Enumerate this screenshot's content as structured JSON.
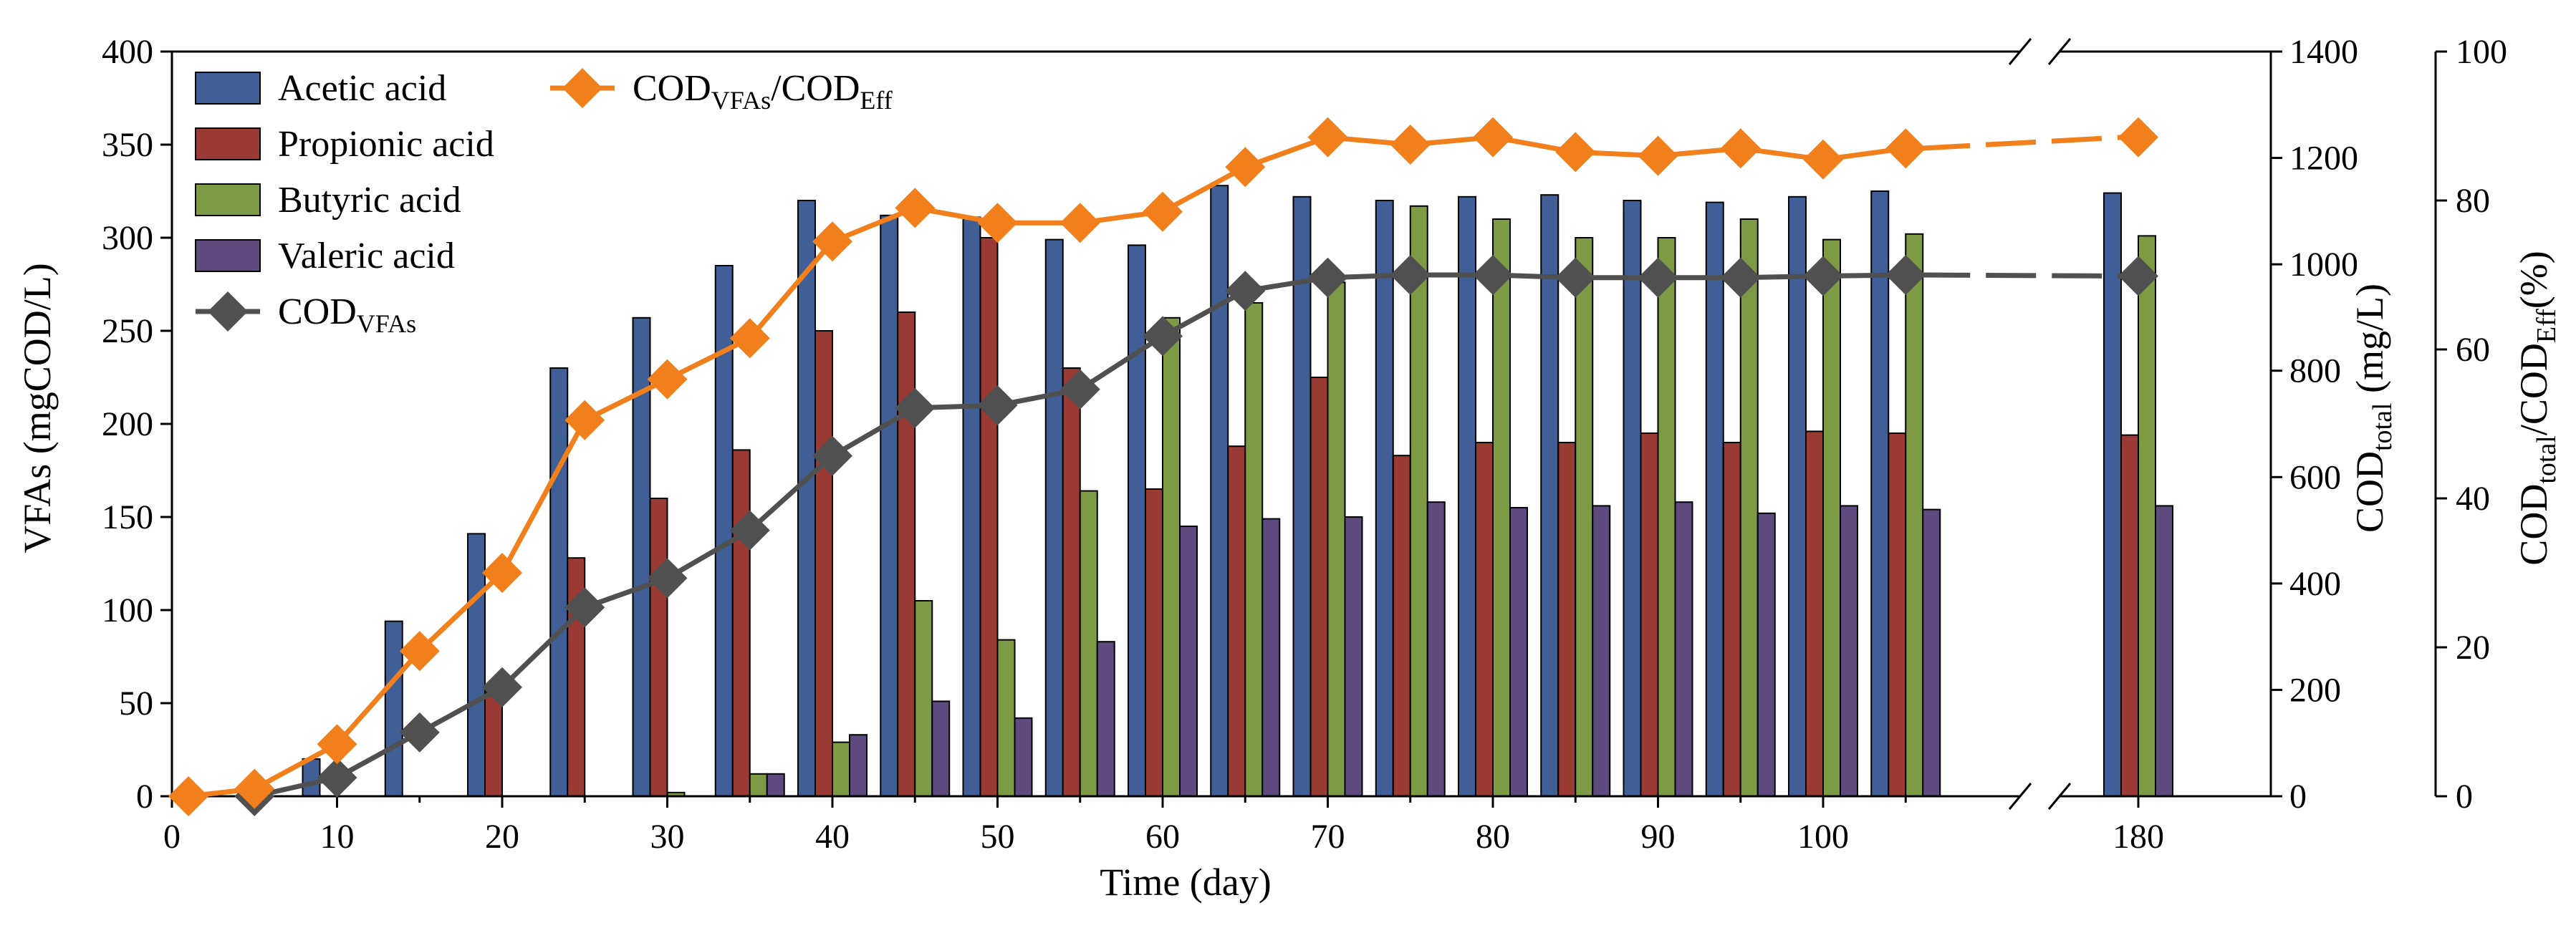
{
  "chart_data": {
    "type": "bar",
    "xlabel": "Time (day)",
    "y1label": "VFAs (mgCOD/L)",
    "y2label": {
      "main": "COD",
      "sub": "total",
      "tail": " (mg/L)"
    },
    "y3label": {
      "main": "COD",
      "sub1": "total",
      "mid": "/COD",
      "sub2": "Eff",
      "tail": "(%)"
    },
    "x_ticks": [
      "0",
      "10",
      "20",
      "30",
      "40",
      "50",
      "60",
      "70",
      "80",
      "90",
      "100",
      "180"
    ],
    "y1_ticks": [
      "0",
      "50",
      "100",
      "150",
      "200",
      "250",
      "300",
      "350",
      "400"
    ],
    "y2_ticks": [
      "0",
      "200",
      "400",
      "600",
      "800",
      "1000",
      "1200",
      "1400"
    ],
    "y3_ticks": [
      "0",
      "20",
      "40",
      "60",
      "80",
      "100"
    ],
    "y1lim": [
      0,
      400
    ],
    "y2lim": [
      0,
      1400
    ],
    "y3lim": [
      0,
      100
    ],
    "days": [
      10,
      15,
      20,
      25,
      30,
      35,
      40,
      45,
      50,
      55,
      60,
      65,
      70,
      75,
      80,
      85,
      90,
      95,
      100,
      105,
      180
    ],
    "series": [
      {
        "name": "Acetic acid",
        "color": "#3f5f96",
        "values": [
          20,
          94,
          141,
          230,
          257,
          285,
          320,
          312,
          311,
          299,
          296,
          328,
          322,
          320,
          322,
          323,
          320,
          319,
          322,
          325,
          324
        ]
      },
      {
        "name": "Propionic acid",
        "color": "#9a3a35",
        "values": [
          0,
          0,
          56,
          128,
          160,
          186,
          250,
          260,
          300,
          230,
          165,
          188,
          225,
          183,
          190,
          190,
          195,
          190,
          196,
          195,
          194
        ]
      },
      {
        "name": "Butyric acid",
        "color": "#7d9a45",
        "values": [
          0,
          0,
          0,
          0,
          2,
          12,
          29,
          105,
          84,
          164,
          257,
          265,
          276,
          317,
          310,
          300,
          300,
          310,
          299,
          302,
          301
        ]
      },
      {
        "name": "Valeric acid",
        "color": "#5e4a7e",
        "values": [
          0,
          0,
          0,
          0,
          0,
          12,
          33,
          51,
          42,
          83,
          145,
          149,
          150,
          158,
          155,
          156,
          158,
          152,
          156,
          154,
          156
        ]
      }
    ],
    "lines": [
      {
        "name": "COD_VFAs",
        "label_main": "COD",
        "label_sub": "VFAs",
        "color": "#505050",
        "marker": "diamond",
        "axis": "y2",
        "x": [
          5,
          10,
          15,
          20,
          25,
          30,
          35,
          40,
          45,
          50,
          55,
          60,
          65,
          70,
          75,
          80,
          85,
          90,
          95,
          100,
          105,
          180
        ],
        "values": [
          0,
          35,
          120,
          205,
          355,
          410,
          500,
          640,
          730,
          735,
          765,
          865,
          950,
          975,
          980,
          980,
          975,
          975,
          975,
          978,
          980,
          978
        ]
      },
      {
        "name": "COD_VFAs/COD_Eff",
        "label_main": "COD",
        "label_sub": "VFAs",
        "label_mid": "/COD",
        "label_sub2": "Eff",
        "color": "#f07f1c",
        "marker": "diamond",
        "axis": "y3",
        "x": [
          1,
          5,
          10,
          15,
          20,
          25,
          30,
          35,
          40,
          45,
          50,
          55,
          60,
          65,
          70,
          75,
          80,
          85,
          90,
          95,
          100,
          105,
          180
        ],
        "values": [
          0,
          1,
          7,
          19.5,
          30,
          50.5,
          56,
          61.5,
          74.5,
          79,
          77,
          77,
          78.5,
          84.5,
          88.5,
          87.5,
          88.5,
          86.5,
          86,
          87,
          85.5,
          87,
          88.5
        ]
      }
    ],
    "legend": "top-left, two columns"
  }
}
